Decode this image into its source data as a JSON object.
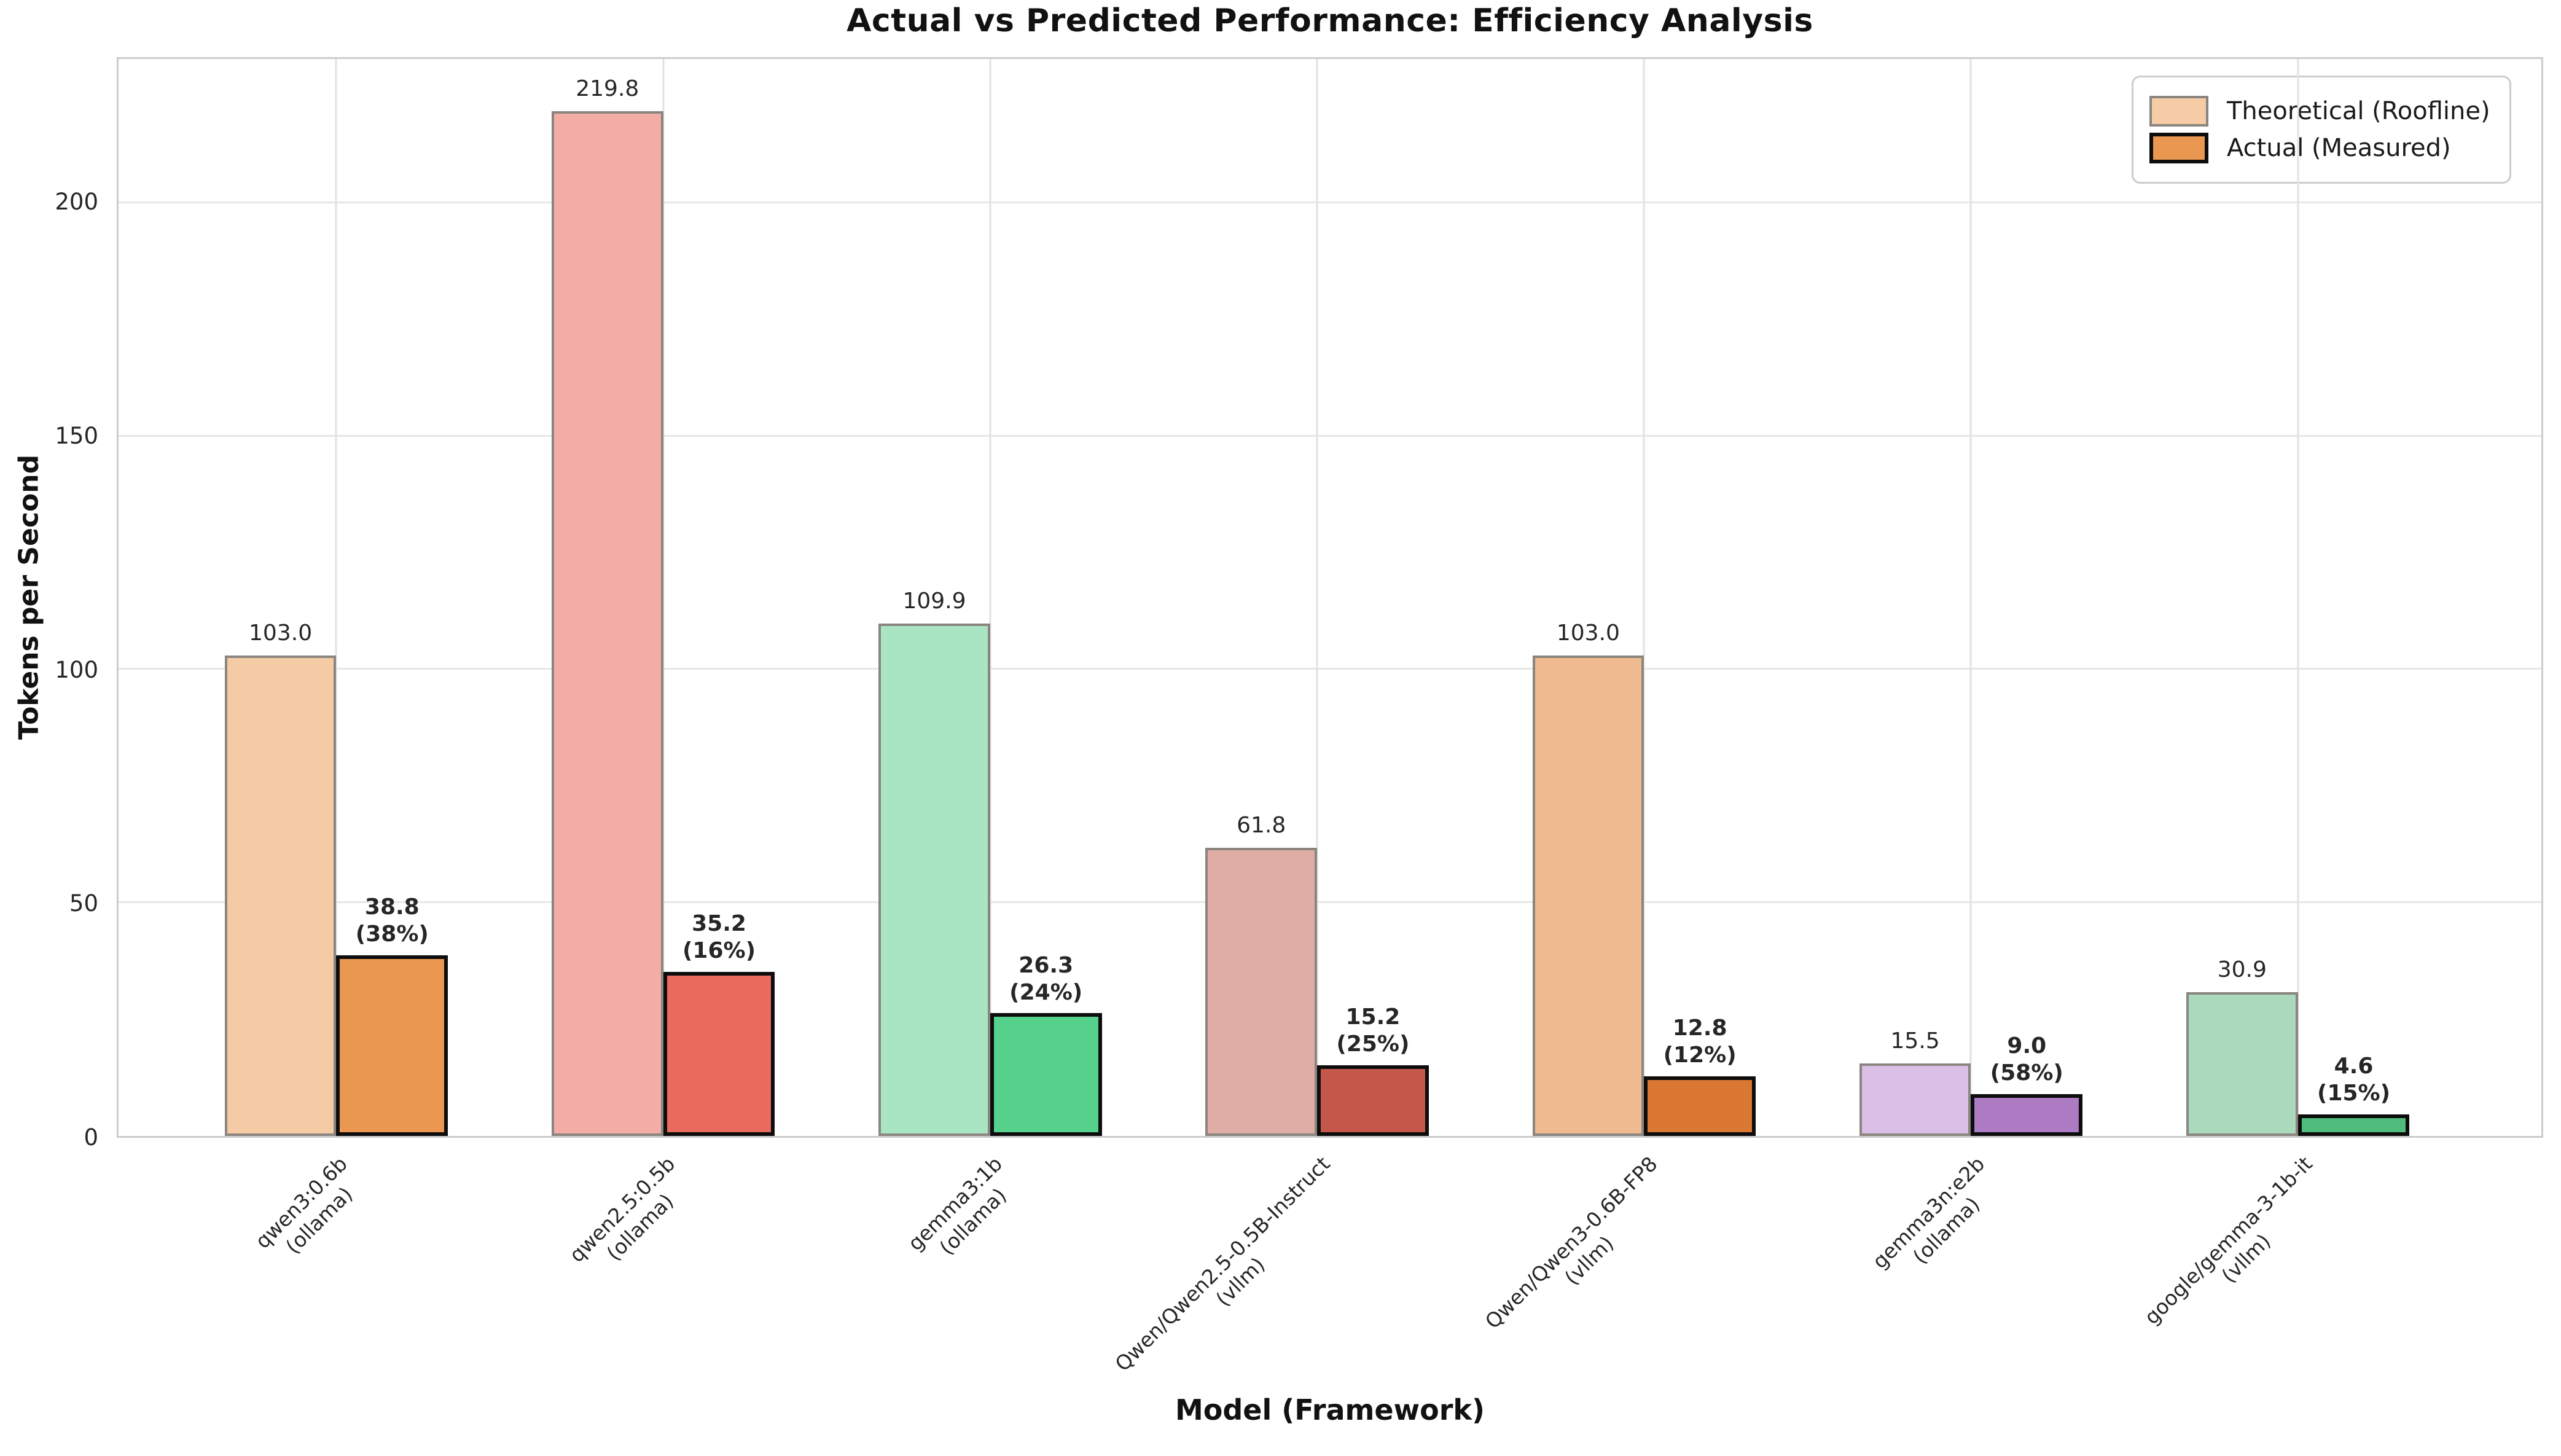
{
  "title": "Actual vs Predicted Performance: Efficiency Analysis",
  "axes": {
    "x_label": "Model (Framework)",
    "y_label": "Tokens per Second",
    "y_ticks": [
      0,
      50,
      100,
      150,
      200
    ],
    "y_max": 231
  },
  "legend": {
    "items": [
      {
        "label": "Theoretical (Roofline)",
        "fill": "#f5cca5",
        "edge": "#8a857f"
      },
      {
        "label": "Actual (Measured)",
        "fill": "#ea9851",
        "edge": "#0d0d0d"
      }
    ]
  },
  "chart_data": {
    "type": "bar",
    "title": "Actual vs Predicted Performance: Efficiency Analysis",
    "xlabel": "Model (Framework)",
    "ylabel": "Tokens per Second",
    "ylim": [
      0,
      231
    ],
    "y_ticks": [
      0,
      50,
      100,
      150,
      200
    ],
    "grid": true,
    "legend_position": "upper right",
    "categories": [
      {
        "model": "qwen3:0.6b",
        "framework": "ollama"
      },
      {
        "model": "qwen2.5:0.5b",
        "framework": "ollama"
      },
      {
        "model": "gemma3:1b",
        "framework": "ollama"
      },
      {
        "model": "Qwen/Qwen2.5-0.5B-Instruct",
        "framework": "vllm"
      },
      {
        "model": "Qwen/Qwen3-0.6B-FP8",
        "framework": "vllm"
      },
      {
        "model": "gemma3n:e2b",
        "framework": "ollama"
      },
      {
        "model": "google/gemma-3-1b-it",
        "framework": "vllm"
      }
    ],
    "series": [
      {
        "name": "Theoretical (Roofline)",
        "values": [
          103.0,
          219.8,
          109.9,
          61.8,
          103.0,
          15.5,
          30.9
        ],
        "labels": [
          "103.0",
          "219.8",
          "109.9",
          "61.8",
          "103.0",
          "15.5",
          "30.9"
        ],
        "fills": [
          "#f4cba4",
          "#f4aca6",
          "#aae5c3",
          "#dfaca6",
          "#efba90",
          "#d9bee6",
          "#abd9bd"
        ],
        "edge": "#8a857f"
      },
      {
        "name": "Actual (Measured)",
        "values": [
          38.8,
          35.2,
          26.3,
          15.2,
          12.8,
          9.0,
          4.6
        ],
        "efficiency_pct": [
          38,
          16,
          24,
          25,
          12,
          58,
          15
        ],
        "labels": [
          "38.8\n(38%)",
          "35.2\n(16%)",
          "26.3\n(24%)",
          "15.2\n(25%)",
          "12.8\n(12%)",
          "9.0\n(58%)",
          "4.6\n(15%)"
        ],
        "fills": [
          "#ea9851",
          "#e96b5e",
          "#55d18b",
          "#c4574a",
          "#d97733",
          "#ad7ac4",
          "#50bc7c"
        ],
        "edge": "#0d0d0d"
      }
    ]
  }
}
